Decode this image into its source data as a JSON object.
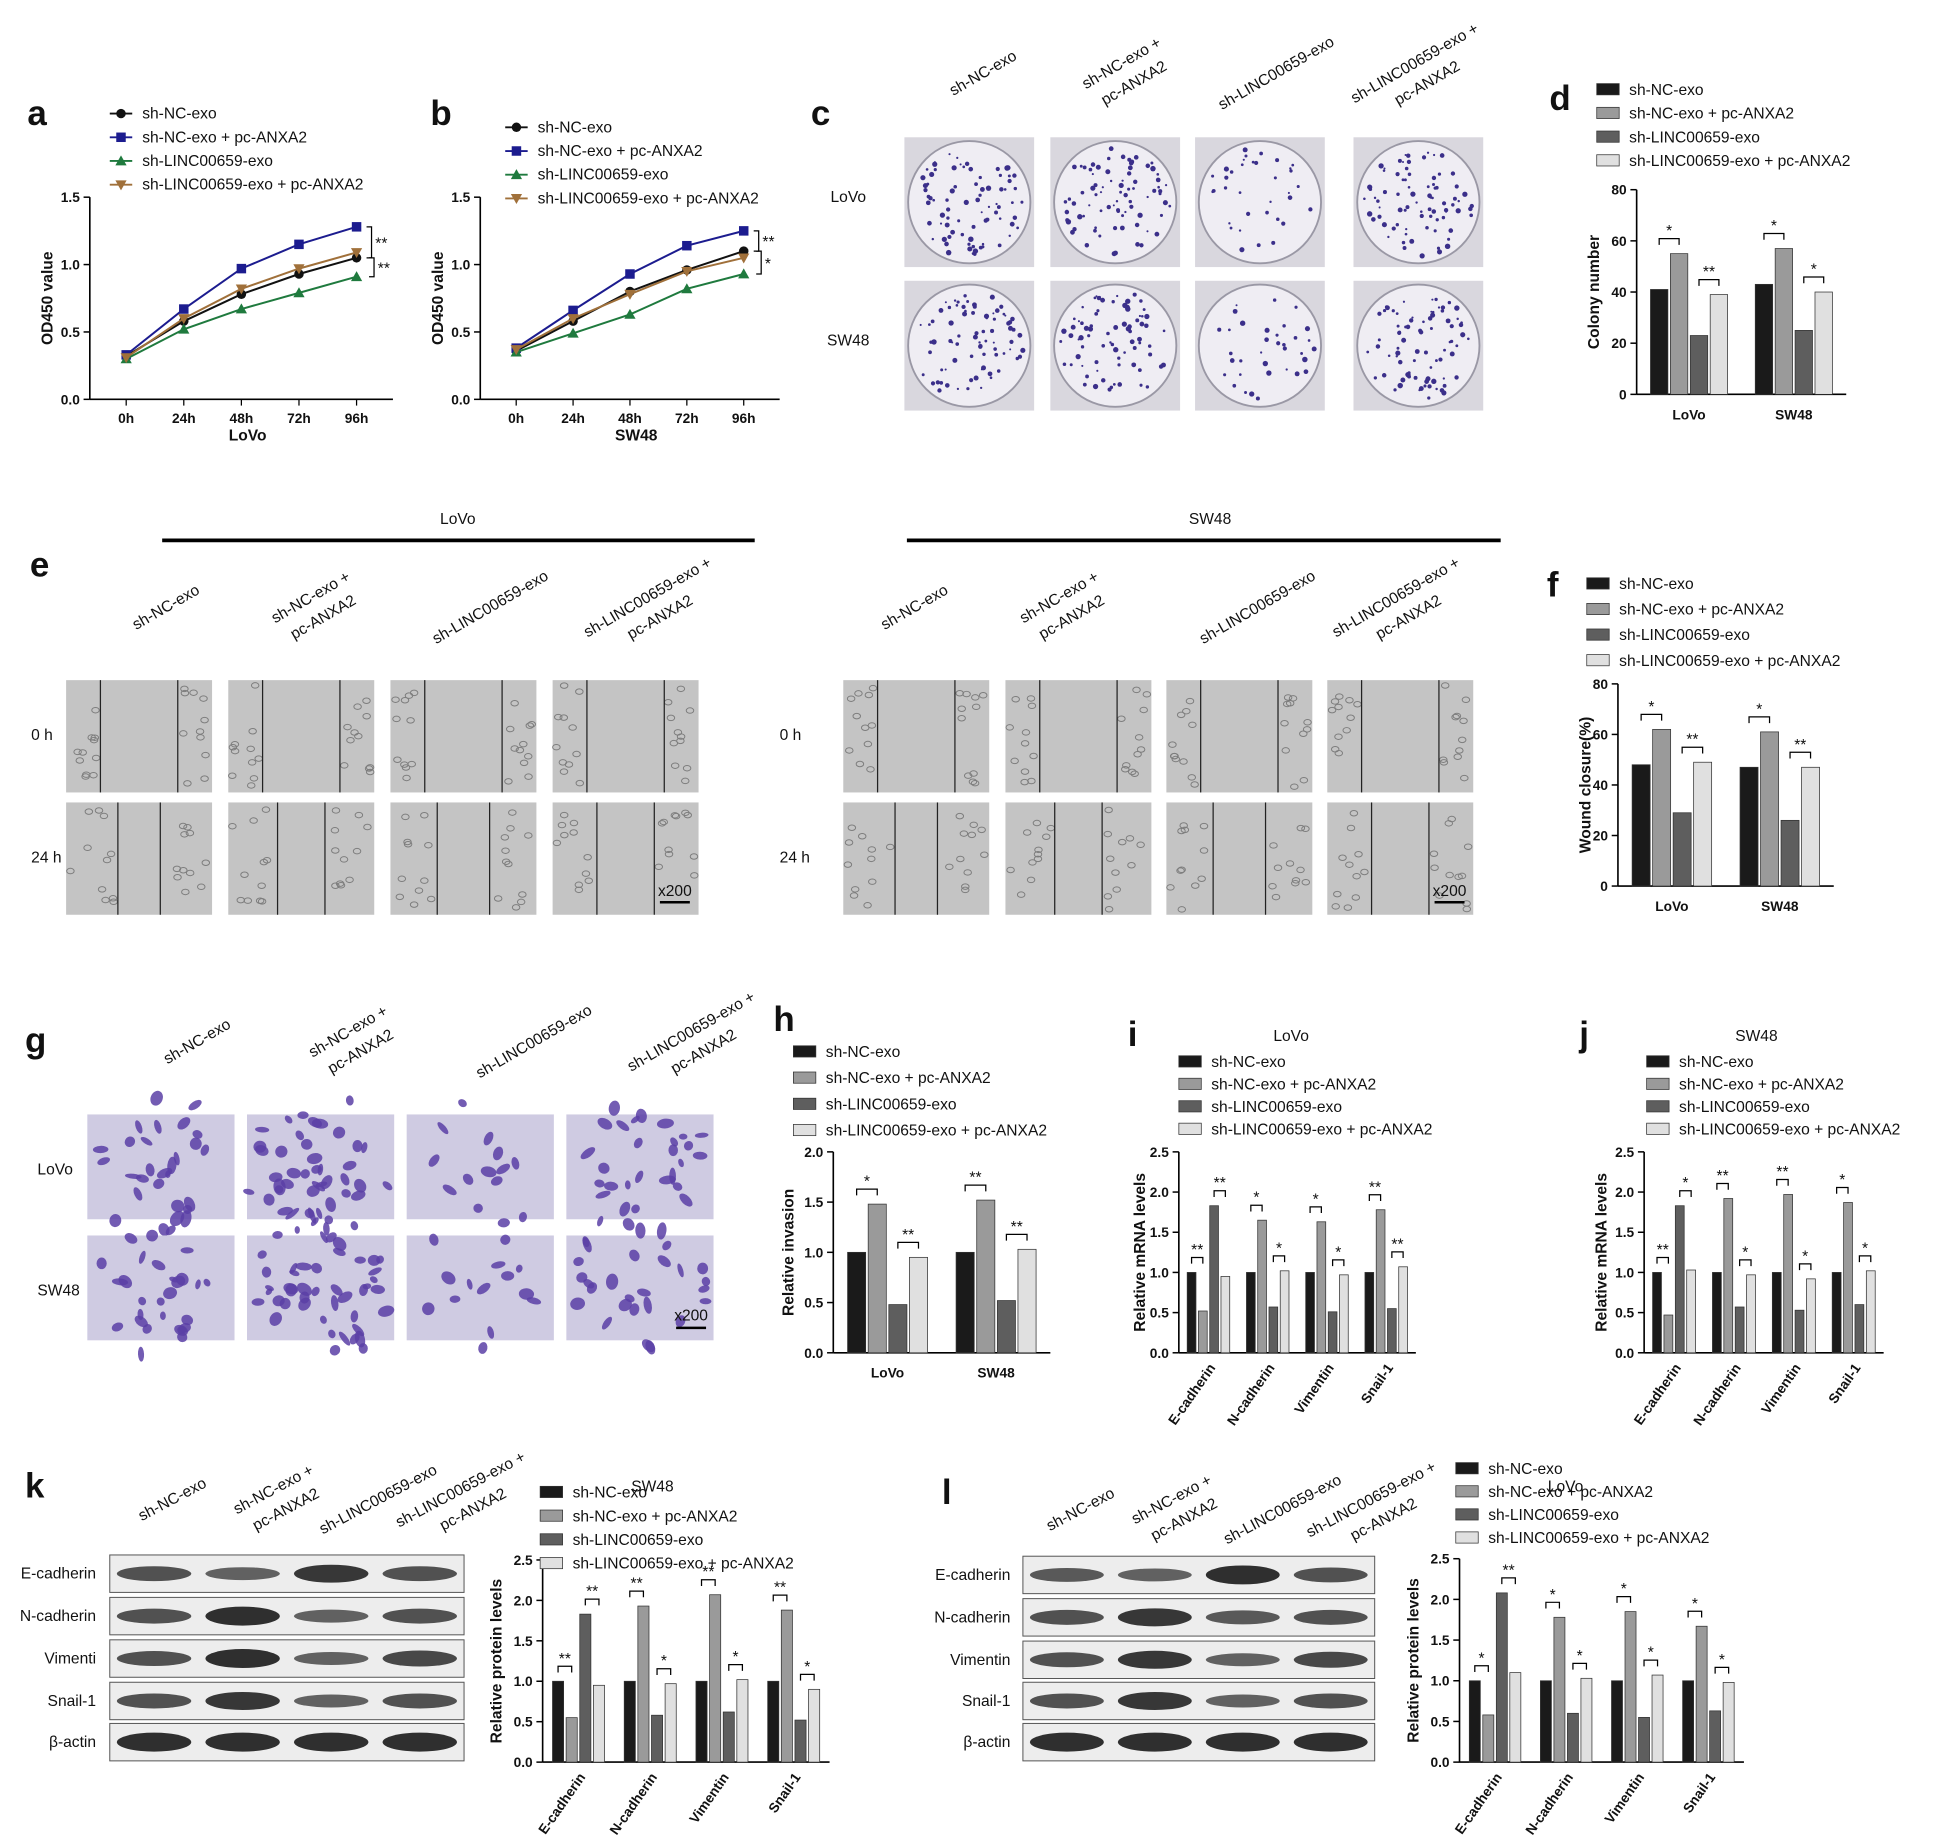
{
  "panel_letters": [
    "a",
    "b",
    "c",
    "d",
    "e",
    "f",
    "g",
    "h",
    "i",
    "j",
    "k",
    "l"
  ],
  "colony_images": {
    "columns": [
      [
        "sh-NC-exo"
      ],
      [
        "sh-NC-exo +",
        "pc-ANXA2"
      ],
      [
        "sh-LINC00659-exo"
      ],
      [
        "sh-LINC00659-exo +",
        "pc-ANXA2"
      ]
    ],
    "rows": [
      "LoVo",
      "SW48"
    ]
  },
  "wound_images": {
    "groups": [
      "LoVo",
      "SW48"
    ],
    "columns": [
      [
        "sh-NC-exo"
      ],
      [
        "sh-NC-exo +",
        "pc-ANXA2"
      ],
      [
        "sh-LINC00659-exo"
      ],
      [
        "sh-LINC00659-exo +",
        "pc-ANXA2"
      ]
    ],
    "rows": [
      "0 h",
      "24 h"
    ],
    "scale": "x200"
  },
  "transwell_images": {
    "columns": [
      [
        "sh-NC-exo"
      ],
      [
        "sh-NC-exo +",
        "pc-ANXA2"
      ],
      [
        "sh-LINC00659-exo"
      ],
      [
        "sh-LINC00659-exo +",
        "pc-ANXA2"
      ]
    ],
    "rows": [
      "LoVo",
      "SW48"
    ],
    "scale": "x200"
  },
  "western_blot_k": {
    "columns": [
      [
        "sh-NC-exo"
      ],
      [
        "sh-NC-exo +",
        "pc-ANXA2"
      ],
      [
        "sh-LINC00659-exo"
      ],
      [
        "sh-LINC00659-exo +",
        "pc-ANXA2"
      ]
    ],
    "rows": [
      "E-cadherin",
      "N-cadherin",
      "Vimenti",
      "Snail-1",
      "β-actin"
    ]
  },
  "western_blot_l": {
    "columns": [
      [
        "sh-NC-exo"
      ],
      [
        "sh-NC-exo +",
        "pc-ANXA2"
      ],
      [
        "sh-LINC00659-exo"
      ],
      [
        "sh-LINC00659-exo +",
        "pc-ANXA2"
      ]
    ],
    "rows": [
      "E-cadherin",
      "N-cadherin",
      "Vimentin",
      "Snail-1",
      "β-actin"
    ]
  },
  "chart_data": [
    {
      "type": "line",
      "xlabel": "LoVo",
      "ylabel": "OD450 value",
      "categories": [
        "0h",
        "24h",
        "48h",
        "72h",
        "96h"
      ],
      "ylim": [
        0,
        1.5
      ],
      "yticks": [
        {
          "value": 0,
          "label": "0.0"
        },
        0.5,
        {
          "value": 1,
          "label": "1.0"
        },
        1.5
      ],
      "series": [
        {
          "name": "sh-NC-exo",
          "color": "#111111",
          "marker": "circle",
          "values": [
            0.32,
            0.58,
            0.78,
            0.93,
            1.05
          ]
        },
        {
          "name": "sh-NC-exo + pc-ANXA2",
          "color": "#1c1c8f",
          "marker": "square",
          "values": [
            0.33,
            0.67,
            0.97,
            1.15,
            1.28
          ]
        },
        {
          "name": "sh-LINC00659-exo",
          "color": "#1f7a3e",
          "marker": "triangle-up",
          "values": [
            0.3,
            0.52,
            0.67,
            0.79,
            0.91
          ]
        },
        {
          "name": "sh-LINC00659-exo + pc-ANXA2",
          "color": "#a0703a",
          "marker": "triangle-down",
          "values": [
            0.31,
            0.6,
            0.82,
            0.97,
            1.09
          ]
        }
      ],
      "significance": [
        "**",
        "**"
      ]
    },
    {
      "type": "line",
      "xlabel": "SW48",
      "ylabel": "OD450 value",
      "categories": [
        "0h",
        "24h",
        "48h",
        "72h",
        "96h"
      ],
      "ylim": [
        0,
        1.5
      ],
      "yticks": [
        {
          "value": 0,
          "label": "0.0"
        },
        0.5,
        {
          "value": 1,
          "label": "1.0"
        },
        1.5
      ],
      "series": [
        {
          "name": "sh-NC-exo",
          "color": "#111111",
          "marker": "circle",
          "values": [
            0.36,
            0.58,
            0.8,
            0.96,
            1.1
          ]
        },
        {
          "name": "sh-NC-exo + pc-ANXA2",
          "color": "#1c1c8f",
          "marker": "square",
          "values": [
            0.38,
            0.66,
            0.93,
            1.14,
            1.25
          ]
        },
        {
          "name": "sh-LINC00659-exo",
          "color": "#1f7a3e",
          "marker": "triangle-up",
          "values": [
            0.35,
            0.49,
            0.63,
            0.82,
            0.93
          ]
        },
        {
          "name": "sh-LINC00659-exo + pc-ANXA2",
          "color": "#a0703a",
          "marker": "triangle-down",
          "values": [
            0.37,
            0.6,
            0.78,
            0.95,
            1.05
          ]
        }
      ],
      "significance": [
        "**",
        "*"
      ]
    },
    {
      "type": "bar",
      "ylabel": "Colony number",
      "categories": [
        "LoVo",
        "SW48"
      ],
      "ylim": [
        0,
        80
      ],
      "yticks": [
        0,
        20,
        40,
        60,
        80
      ],
      "series": [
        {
          "name": "sh-NC-exo",
          "color": "#1a1a1a",
          "values": [
            41,
            43
          ]
        },
        {
          "name": "sh-NC-exo + pc-ANXA2",
          "color": "#9a9a9a",
          "values": [
            55,
            57
          ]
        },
        {
          "name": "sh-LINC00659-exo",
          "color": "#5e5e5e",
          "values": [
            23,
            25
          ]
        },
        {
          "name": "sh-LINC00659-exo + pc-ANXA2",
          "color": "#e0e0e0",
          "values": [
            39,
            40
          ]
        }
      ],
      "significance": [
        [
          "*",
          "**"
        ],
        [
          "*",
          "*"
        ]
      ]
    },
    {
      "type": "bar",
      "ylabel": "Wound closure(%)",
      "categories": [
        "LoVo",
        "SW48"
      ],
      "ylim": [
        0,
        80
      ],
      "yticks": [
        0,
        20,
        40,
        60,
        80
      ],
      "series": [
        {
          "name": "sh-NC-exo",
          "color": "#1a1a1a",
          "values": [
            48,
            47
          ]
        },
        {
          "name": "sh-NC-exo + pc-ANXA2",
          "color": "#9a9a9a",
          "values": [
            62,
            61
          ]
        },
        {
          "name": "sh-LINC00659-exo",
          "color": "#5e5e5e",
          "values": [
            29,
            26
          ]
        },
        {
          "name": "sh-LINC00659-exo + pc-ANXA2",
          "color": "#e0e0e0",
          "values": [
            49,
            47
          ]
        }
      ],
      "significance": [
        [
          "*",
          "**"
        ],
        [
          "*",
          "**"
        ]
      ]
    },
    {
      "type": "bar",
      "ylabel": "Relative invasion",
      "categories": [
        "LoVo",
        "SW48"
      ],
      "ylim": [
        0,
        2
      ],
      "yticks": [
        {
          "value": 0,
          "label": "0.0"
        },
        0.5,
        {
          "value": 1,
          "label": "1.0"
        },
        1.5,
        {
          "value": 2,
          "label": "2.0"
        }
      ],
      "series": [
        {
          "name": "sh-NC-exo",
          "color": "#1a1a1a",
          "values": [
            1.0,
            1.0
          ]
        },
        {
          "name": "sh-NC-exo + pc-ANXA2",
          "color": "#9a9a9a",
          "values": [
            1.48,
            1.52
          ]
        },
        {
          "name": "sh-LINC00659-exo",
          "color": "#5e5e5e",
          "values": [
            0.48,
            0.52
          ]
        },
        {
          "name": "sh-LINC00659-exo + pc-ANXA2",
          "color": "#e0e0e0",
          "values": [
            0.95,
            1.03
          ]
        }
      ],
      "significance": [
        [
          "*",
          "**"
        ],
        [
          "**",
          "**"
        ]
      ]
    },
    {
      "type": "bar",
      "title": "LoVo",
      "ylabel": "Relative mRNA levels",
      "categories": [
        "E-cadherin",
        "N-cadherin",
        "Vimentin",
        "Snail-1"
      ],
      "ylim": [
        0,
        2.5
      ],
      "yticks": [
        {
          "value": 0,
          "label": "0.0"
        },
        0.5,
        {
          "value": 1,
          "label": "1.0"
        },
        1.5,
        {
          "value": 2,
          "label": "2.0"
        },
        2.5
      ],
      "series": [
        {
          "name": "sh-NC-exo",
          "color": "#1a1a1a",
          "values": [
            1.0,
            1.0,
            1.0,
            1.0
          ]
        },
        {
          "name": "sh-NC-exo + pc-ANXA2",
          "color": "#9a9a9a",
          "values": [
            0.52,
            1.65,
            1.63,
            1.78
          ]
        },
        {
          "name": "sh-LINC00659-exo",
          "color": "#5e5e5e",
          "values": [
            1.83,
            0.57,
            0.51,
            0.55
          ]
        },
        {
          "name": "sh-LINC00659-exo + pc-ANXA2",
          "color": "#e0e0e0",
          "values": [
            0.95,
            1.02,
            0.97,
            1.07
          ]
        }
      ],
      "significance": [
        [
          "**",
          "**"
        ],
        [
          "*",
          "*"
        ],
        [
          "*",
          "*"
        ],
        [
          "**",
          "**"
        ]
      ]
    },
    {
      "type": "bar",
      "title": "SW48",
      "ylabel": "Relative mRNA levels",
      "categories": [
        "E-cadherin",
        "N-cadherin",
        "Vimentin",
        "Snail-1"
      ],
      "ylim": [
        0,
        2.5
      ],
      "yticks": [
        {
          "value": 0,
          "label": "0.0"
        },
        0.5,
        {
          "value": 1,
          "label": "1.0"
        },
        1.5,
        {
          "value": 2,
          "label": "2.0"
        },
        2.5
      ],
      "series": [
        {
          "name": "sh-NC-exo",
          "color": "#1a1a1a",
          "values": [
            1.0,
            1.0,
            1.0,
            1.0
          ]
        },
        {
          "name": "sh-NC-exo + pc-ANXA2",
          "color": "#9a9a9a",
          "values": [
            0.47,
            1.92,
            1.97,
            1.87
          ]
        },
        {
          "name": "sh-LINC00659-exo",
          "color": "#5e5e5e",
          "values": [
            1.83,
            0.57,
            0.53,
            0.6
          ]
        },
        {
          "name": "sh-LINC00659-exo + pc-ANXA2",
          "color": "#e0e0e0",
          "values": [
            1.03,
            0.97,
            0.92,
            1.02
          ]
        }
      ],
      "significance": [
        [
          "**",
          "*"
        ],
        [
          "**",
          "*"
        ],
        [
          "**",
          "*"
        ],
        [
          "*",
          "*"
        ]
      ]
    },
    {
      "type": "bar",
      "title": "SW48",
      "ylabel": "Relative protein levels",
      "categories": [
        "E-cadherin",
        "N-cadherin",
        "Vimentin",
        "Snail-1"
      ],
      "ylim": [
        0,
        2.5
      ],
      "yticks": [
        {
          "value": 0,
          "label": "0.0"
        },
        0.5,
        {
          "value": 1,
          "label": "1.0"
        },
        1.5,
        {
          "value": 2,
          "label": "2.0"
        },
        2.5
      ],
      "series": [
        {
          "name": "sh-NC-exo",
          "color": "#1a1a1a",
          "values": [
            1.0,
            1.0,
            1.0,
            1.0
          ]
        },
        {
          "name": "sh-NC-exo + pc-ANXA2",
          "color": "#9a9a9a",
          "values": [
            0.55,
            1.93,
            2.07,
            1.88
          ]
        },
        {
          "name": "sh-LINC00659-exo",
          "color": "#5e5e5e",
          "values": [
            1.83,
            0.58,
            0.62,
            0.52
          ]
        },
        {
          "name": "sh-LINC00659-exo + pc-ANXA2",
          "color": "#e0e0e0",
          "values": [
            0.95,
            0.97,
            1.02,
            0.9
          ]
        }
      ],
      "significance": [
        [
          "**",
          "**"
        ],
        [
          "**",
          "*"
        ],
        [
          "**",
          "*"
        ],
        [
          "**",
          "*"
        ]
      ]
    },
    {
      "type": "bar",
      "title": "LoVo",
      "ylabel": "Relative protein levels",
      "categories": [
        "E-cadherin",
        "N-cadherin",
        "Vimentin",
        "Snail-1"
      ],
      "ylim": [
        0,
        2.5
      ],
      "yticks": [
        {
          "value": 0,
          "label": "0.0"
        },
        0.5,
        {
          "value": 1,
          "label": "1.0"
        },
        1.5,
        {
          "value": 2,
          "label": "2.0"
        },
        2.5
      ],
      "series": [
        {
          "name": "sh-NC-exo",
          "color": "#1a1a1a",
          "values": [
            1.0,
            1.0,
            1.0,
            1.0
          ]
        },
        {
          "name": "sh-NC-exo + pc-ANXA2",
          "color": "#9a9a9a",
          "values": [
            0.58,
            1.78,
            1.85,
            1.67
          ]
        },
        {
          "name": "sh-LINC00659-exo",
          "color": "#5e5e5e",
          "values": [
            2.08,
            0.6,
            0.55,
            0.63
          ]
        },
        {
          "name": "sh-LINC00659-exo + pc-ANXA2",
          "color": "#e0e0e0",
          "values": [
            1.1,
            1.03,
            1.07,
            0.98
          ]
        }
      ],
      "significance": [
        [
          "*",
          "**"
        ],
        [
          "*",
          "*"
        ],
        [
          "*",
          "*"
        ],
        [
          "*",
          "*"
        ]
      ]
    }
  ]
}
